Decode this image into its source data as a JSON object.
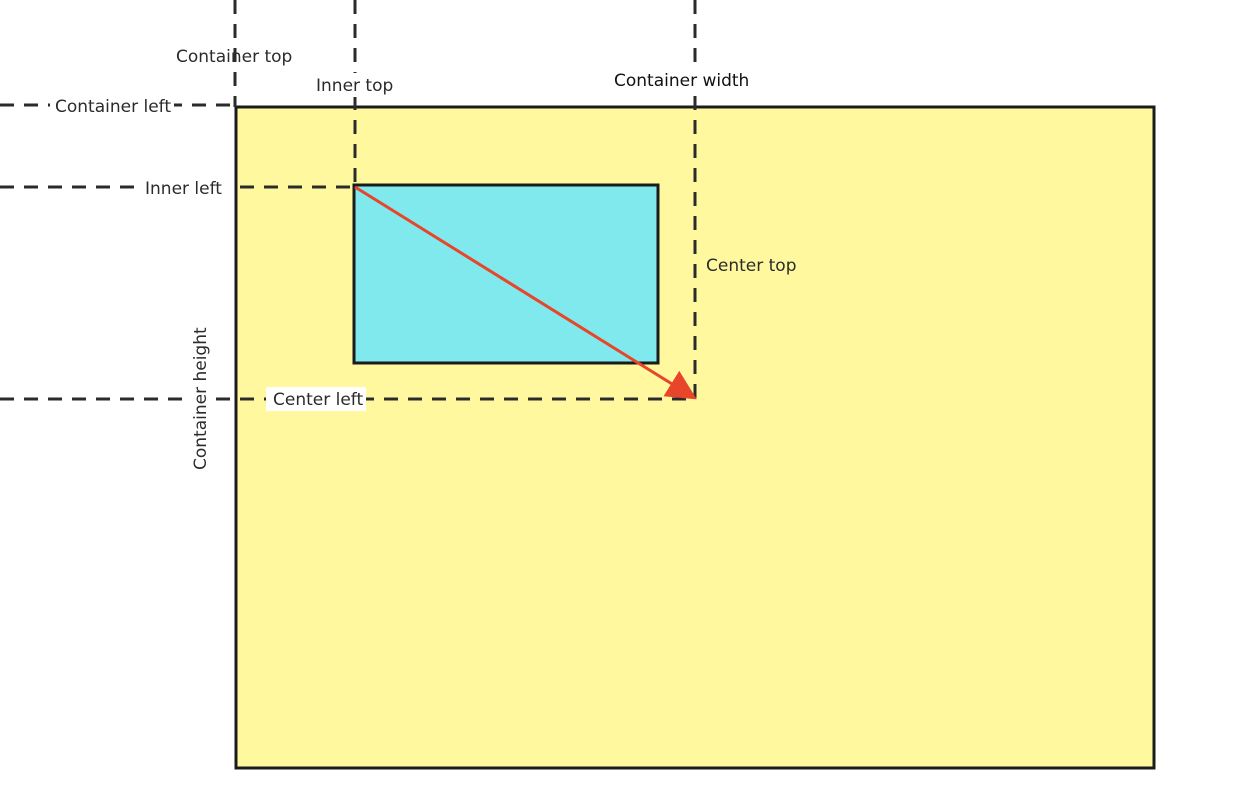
{
  "diagram": {
    "labels": {
      "container_top": "Container top",
      "inner_top": "Inner top",
      "container_width": "Container width",
      "container_left": "Container left",
      "inner_left": "Inner left",
      "center_top": "Center top",
      "container_height": "Container height",
      "center_left": "Center left"
    },
    "colors": {
      "container_fill": "#fff89f",
      "inner_fill": "#7fe9ee",
      "outline": "#1b1b1b",
      "guide": "#2b2b2b",
      "arrow": "#e8462a"
    }
  }
}
